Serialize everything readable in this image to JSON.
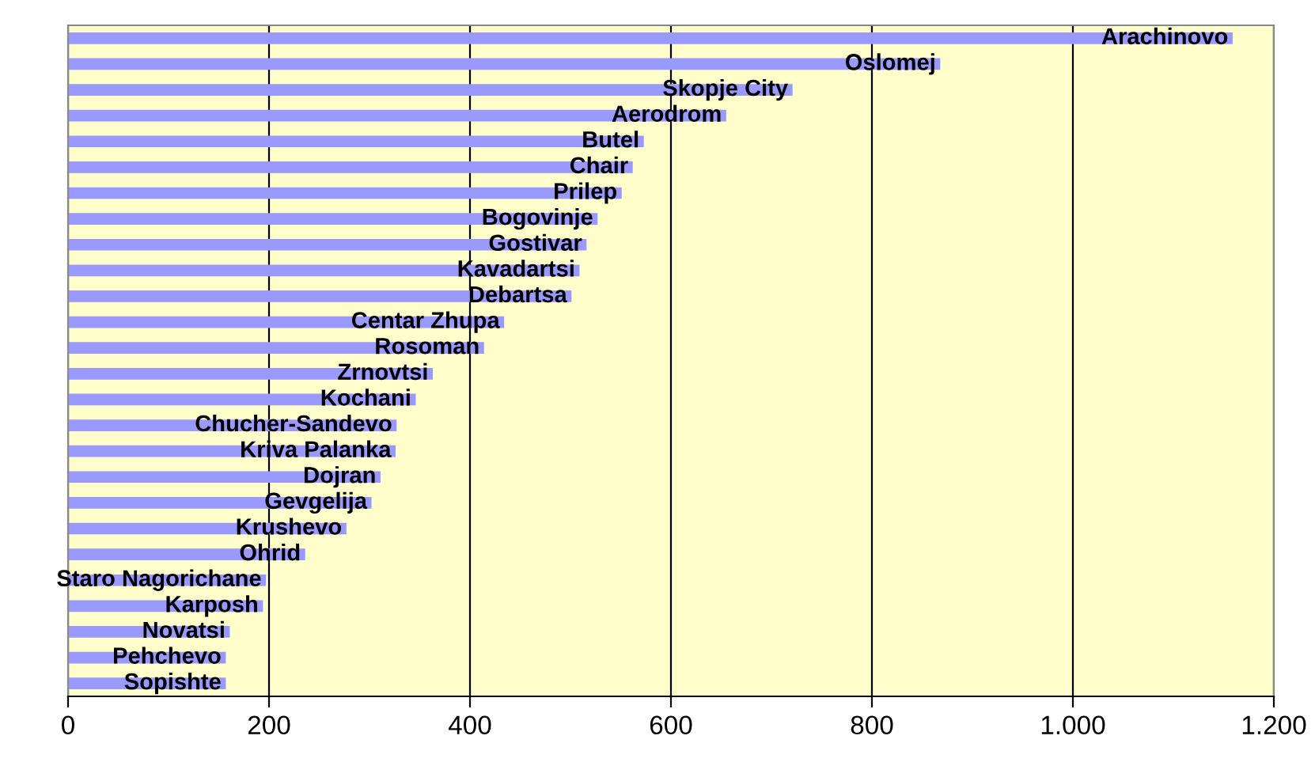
{
  "chart_data": {
    "type": "bar",
    "orientation": "horizontal",
    "tick_labels": "x",
    "grid": "x",
    "color": "#9999ff",
    "categories": [
      "Arachinovo",
      "Oslomej",
      "Skopje City",
      "Aerodrom",
      "Butel",
      "Chair",
      "Prilep",
      "Bogovinje",
      "Gostivar",
      "Kavadartsi",
      "Debartsa",
      "Centar Zhupa",
      "Rosoman",
      "Zrnovtsi",
      "Kochani",
      "Chucher-Sandevo",
      "Kriva Palanka",
      "Dojran",
      "Gevgelija",
      "Krushevo",
      "Ohrid",
      "Staro Nagorichane",
      "Karposh",
      "Novatsi",
      "Pehchevo",
      "Sopishte"
    ],
    "values": [
      1159,
      868,
      721,
      655,
      573,
      562,
      551,
      527,
      516,
      509,
      501,
      434,
      414,
      363,
      346,
      327,
      326,
      311,
      302,
      277,
      236,
      197,
      194,
      161,
      157,
      157
    ],
    "xlim": [
      0,
      1200
    ],
    "xticks": [
      0,
      200,
      400,
      600,
      800,
      {
        "value": 1000,
        "label": "1.000"
      },
      {
        "value": 1200,
        "label": "1.200"
      }
    ]
  }
}
